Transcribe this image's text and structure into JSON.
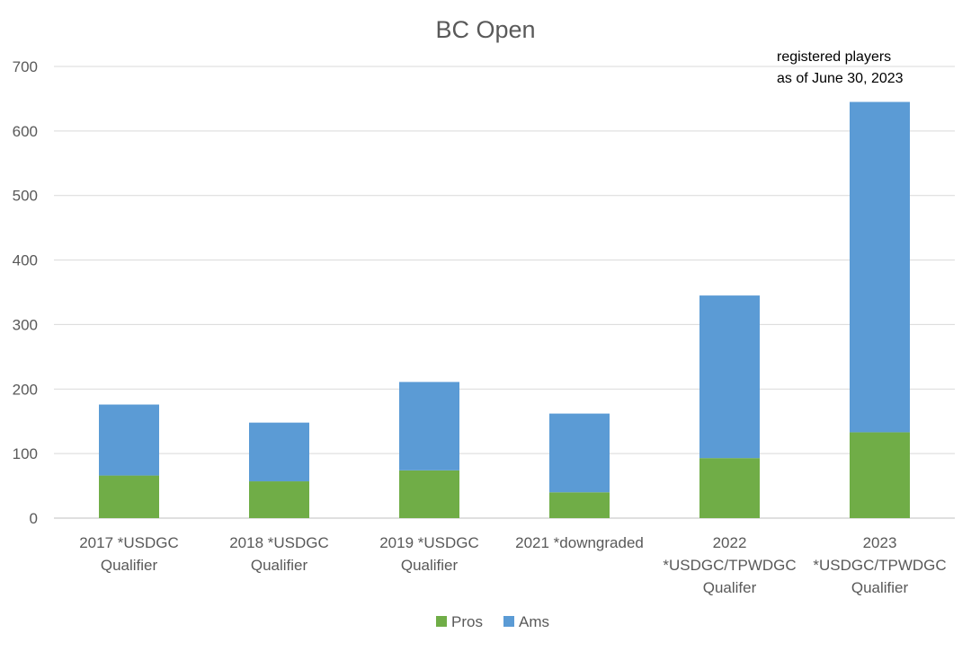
{
  "chart_data": {
    "type": "bar",
    "stacked": true,
    "title": "BC Open",
    "xlabel": "",
    "ylabel": "",
    "ylim": [
      0,
      700
    ],
    "yticks": [
      0,
      100,
      200,
      300,
      400,
      500,
      600,
      700
    ],
    "grid": true,
    "legend_position": "bottom",
    "categories": [
      [
        "2017 *USDGC",
        "Qualifier"
      ],
      [
        "2018 *USDGC",
        "Qualifier"
      ],
      [
        "2019 *USDGC",
        "Qualifier"
      ],
      [
        "2021 *downgraded"
      ],
      [
        "2022",
        "*USDGC/TPWDGC",
        "Qualifer"
      ],
      [
        "2023",
        "*USDGC/TPWDGC",
        "Qualifier"
      ]
    ],
    "series": [
      {
        "name": "Pros",
        "color": "#70ad47",
        "values": [
          66,
          57,
          74,
          40,
          93,
          133
        ]
      },
      {
        "name": "Ams",
        "color": "#5b9bd5",
        "values": [
          110,
          91,
          137,
          122,
          252,
          512
        ]
      }
    ],
    "annotation": [
      "registered players",
      "as of June 30, 2023"
    ]
  }
}
